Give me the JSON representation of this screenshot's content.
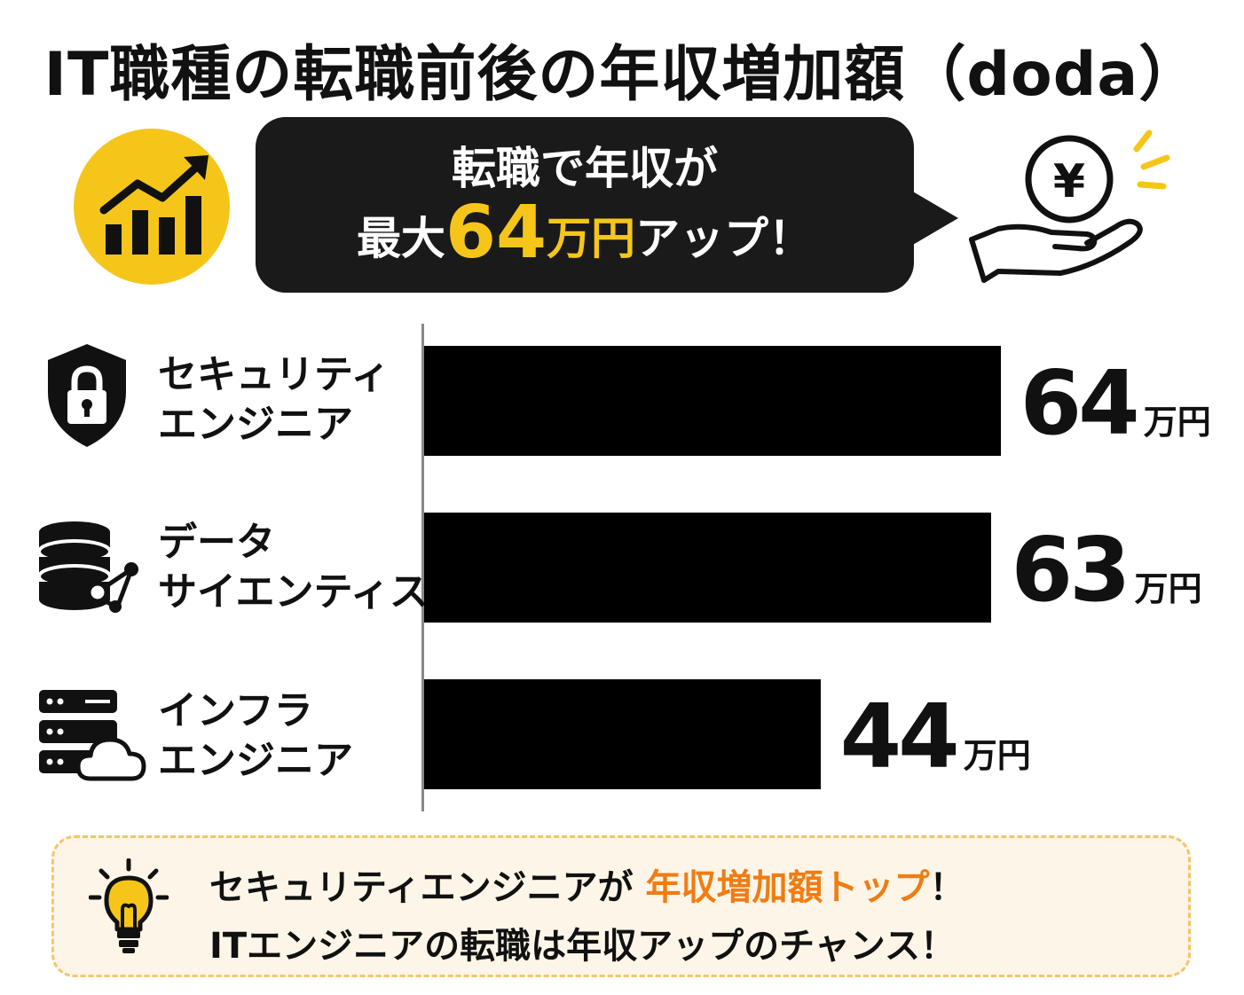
{
  "title": "IT職種の転職前後の年収増加額（doda）",
  "bubble": {
    "line1": "転職で年収が",
    "line2_prefix": "最大",
    "line2_number": "64",
    "line2_unit": "万円",
    "line2_suffix": "アップ！"
  },
  "colors": {
    "accent_yellow": "#f5c619",
    "bubble_bg": "#1a1a1a",
    "bar": "#000000",
    "highlight_orange": "#f07c14",
    "note_bg": "#fdf6e8",
    "note_border": "#f3c56a"
  },
  "icons": {
    "trend": "rising-bar-chart-icon",
    "money": "yen-coin-on-hand-icon",
    "security": "shield-lock-icon",
    "data": "database-network-icon",
    "infra": "server-cloud-icon",
    "tip": "lightbulb-icon"
  },
  "chart_data": {
    "type": "bar",
    "orientation": "horizontal",
    "unit": "万円",
    "categories": [
      [
        "セキュリティ",
        "エンジニア"
      ],
      [
        "データ",
        "サイエンティスト"
      ],
      [
        "インフラ",
        "エンジニア"
      ]
    ],
    "values": [
      64,
      63,
      44
    ]
  },
  "note": {
    "line1_prefix": "セキュリティエンジニアが ",
    "line1_highlight": "年収増加額トップ",
    "line1_suffix": "！",
    "line2": "ITエンジニアの転職は年収アップのチャンス！"
  }
}
